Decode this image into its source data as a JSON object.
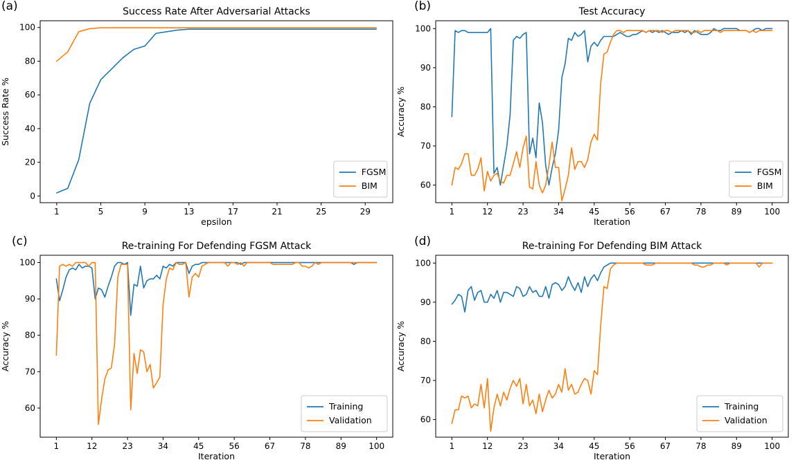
{
  "colors": {
    "series1": "#1f77b4",
    "series2": "#ff7f0e"
  },
  "chart_data": [
    {
      "panel_label": "(a)",
      "type": "line",
      "title": "Success Rate After Adversarial Attacks",
      "xlabel": "epsilon",
      "ylabel": "Success Rate %",
      "xlim": [
        -0.5,
        31.5
      ],
      "ylim": [
        -4,
        104
      ],
      "xticks": [
        1,
        5,
        9,
        13,
        17,
        21,
        25,
        29
      ],
      "yticks": [
        0,
        20,
        40,
        60,
        80,
        100
      ],
      "legend_position": "lower-right",
      "series": [
        {
          "name": "FGSM",
          "x": [
            1,
            2,
            3,
            4,
            5,
            6,
            7,
            8,
            9,
            10,
            11,
            12,
            13,
            14,
            15,
            16,
            17,
            18,
            19,
            20,
            21,
            22,
            23,
            24,
            25,
            26,
            27,
            28,
            29,
            30
          ],
          "values": [
            1.8,
            4.5,
            21.5,
            55,
            69,
            75.5,
            82,
            87,
            89,
            96.5,
            97.5,
            98.5,
            99,
            99,
            99,
            99,
            99,
            99,
            99,
            99,
            99,
            99,
            99,
            99,
            99,
            99,
            99,
            99,
            99,
            99
          ]
        },
        {
          "name": "BIM",
          "x": [
            1,
            2,
            3,
            4,
            5,
            6,
            7,
            8,
            9,
            10,
            11,
            12,
            13,
            14,
            15,
            16,
            17,
            18,
            19,
            20,
            21,
            22,
            23,
            24,
            25,
            26,
            27,
            28,
            29,
            30
          ],
          "values": [
            80,
            85.5,
            97.5,
            99.3,
            99.8,
            99.8,
            99.8,
            99.8,
            99.8,
            99.8,
            99.8,
            99.8,
            99.8,
            99.8,
            99.8,
            99.8,
            99.8,
            99.8,
            99.8,
            99.8,
            99.8,
            99.8,
            99.8,
            99.8,
            99.8,
            99.8,
            99.8,
            99.8,
            99.8,
            99.8
          ]
        }
      ]
    },
    {
      "panel_label": "(b)",
      "type": "line",
      "title": "Test Accuracy",
      "xlabel": "Iteration",
      "ylabel": "Accuracy %",
      "xlim": [
        -4,
        105
      ],
      "ylim": [
        55.5,
        102
      ],
      "xticks": [
        1,
        12,
        23,
        34,
        45,
        56,
        67,
        78,
        89,
        100
      ],
      "yticks": [
        60,
        70,
        80,
        90,
        100
      ],
      "legend_position": "lower-right",
      "series": [
        {
          "name": "FGSM",
          "x_start": 1,
          "values": [
            77.5,
            99.5,
            99,
            99.5,
            99.5,
            99,
            99,
            99,
            99,
            99,
            99,
            99,
            100,
            63,
            64.5,
            60,
            65,
            70,
            78,
            97,
            98,
            97.5,
            98.5,
            99,
            68,
            72,
            67,
            81,
            76,
            65,
            60,
            64.5,
            68,
            74,
            87.5,
            91,
            97.5,
            97,
            99,
            98,
            98.5,
            99.5,
            91.5,
            95.5,
            96.5,
            95.5,
            97,
            98,
            98,
            98,
            98,
            98.5,
            99,
            98.5,
            98,
            98,
            98.5,
            98.5,
            99,
            99.5,
            99,
            99.5,
            99,
            99.5,
            99,
            99.5,
            99,
            98.5,
            99,
            99,
            99,
            99.5,
            99,
            99.5,
            98.5,
            99.5,
            99,
            98.5,
            98.5,
            98.5,
            99,
            100,
            99.5,
            99.5,
            100,
            100,
            100,
            100,
            100,
            99.5,
            99.5,
            99.5,
            99,
            99.5,
            100,
            100,
            99.5,
            100,
            100,
            100
          ]
        },
        {
          "name": "BIM",
          "x_start": 1,
          "values": [
            60,
            64.5,
            64,
            65.5,
            68,
            68,
            62.5,
            62.5,
            64,
            67,
            58.5,
            63.5,
            61,
            62.5,
            63,
            61,
            60.5,
            62.5,
            62.5,
            65.5,
            68.5,
            64.5,
            69.5,
            72.5,
            59.5,
            59,
            66,
            60,
            58,
            60,
            65,
            71,
            64.5,
            64.5,
            56,
            59,
            62.5,
            69.5,
            64,
            66,
            66,
            64.5,
            66.5,
            71,
            73,
            71.5,
            86,
            93.5,
            94,
            96.5,
            98.5,
            99.5,
            99.5,
            99,
            99.5,
            99.5,
            99.5,
            99.5,
            99.5,
            99.5,
            99,
            99.5,
            99.5,
            99.5,
            99.5,
            99,
            99.5,
            99.5,
            99,
            99.5,
            99.5,
            99.5,
            99.5,
            99.5,
            99,
            99,
            99.5,
            99,
            99.5,
            99.5,
            99.5,
            99.5,
            99.5,
            99,
            99.5,
            99.5,
            99.5,
            99.5,
            99.5,
            99.5,
            99.5,
            99.5,
            99,
            99.5,
            99,
            99.5,
            99.5,
            99.5,
            99.5,
            99.5
          ]
        }
      ]
    },
    {
      "panel_label": "(c)",
      "type": "line",
      "title": "Re-training For Defending FGSM Attack",
      "xlabel": "Iteration",
      "ylabel": "Accuracy %",
      "xlim": [
        -4,
        105
      ],
      "ylim": [
        52,
        102
      ],
      "xticks": [
        1,
        12,
        23,
        34,
        45,
        56,
        67,
        78,
        89,
        100
      ],
      "yticks": [
        60,
        70,
        80,
        90,
        100
      ],
      "legend_position": "lower-right",
      "series": [
        {
          "name": "Training",
          "x_start": 1,
          "values": [
            95.5,
            89.5,
            92.5,
            96,
            98,
            98.5,
            98,
            99.5,
            98.5,
            99,
            99,
            98.5,
            90,
            93,
            92.5,
            90.5,
            93.5,
            96,
            99,
            100,
            100,
            99.5,
            100,
            85.5,
            94,
            93.5,
            99,
            93,
            95,
            95.5,
            95.5,
            96.5,
            95.5,
            99,
            98.5,
            99.5,
            99,
            100,
            100,
            100,
            100,
            97,
            99,
            99.5,
            99.5,
            100,
            100,
            100,
            100,
            100,
            100,
            100,
            100,
            100,
            100,
            100,
            100,
            99.5,
            100,
            100,
            100,
            100,
            100,
            100,
            100,
            100,
            100,
            100,
            100,
            100,
            100,
            100,
            100,
            100,
            100,
            100,
            100,
            100,
            100,
            100,
            100,
            100,
            100,
            100,
            100,
            100,
            100,
            100,
            100,
            100,
            100,
            100,
            99.5,
            100,
            100,
            100,
            100,
            100,
            100,
            100
          ]
        },
        {
          "name": "Validation",
          "x_start": 1,
          "values": [
            74.5,
            99,
            99.5,
            99,
            99.5,
            99,
            100,
            100,
            100,
            100,
            99,
            100,
            100,
            55.5,
            62.5,
            68,
            70.5,
            71,
            77.5,
            96,
            99.5,
            99.5,
            99.5,
            59.5,
            75,
            69.5,
            76,
            75.5,
            70,
            72,
            65.5,
            67,
            68.5,
            88.5,
            95.5,
            98.5,
            98,
            100,
            99.5,
            99.5,
            100,
            90.5,
            96,
            97,
            96,
            99,
            99.5,
            100,
            100,
            100,
            100,
            100,
            100,
            99,
            100,
            100,
            99.5,
            100,
            99,
            100,
            100,
            100,
            100,
            100,
            100,
            100,
            100,
            99.5,
            99.5,
            99.5,
            99.5,
            99.5,
            99.5,
            99.5,
            100,
            100,
            99,
            99,
            98.5,
            99,
            100,
            99.5,
            100,
            100,
            100,
            100,
            100,
            100,
            100,
            100,
            100,
            100,
            100,
            100,
            100,
            100,
            100,
            100,
            100,
            100
          ]
        }
      ]
    },
    {
      "panel_label": "(d)",
      "type": "line",
      "title": "Re-training For Defending BIM Attack",
      "xlabel": "Iteration",
      "ylabel": "Accuracy %",
      "xlim": [
        -4,
        105
      ],
      "ylim": [
        55.5,
        102
      ],
      "xticks": [
        1,
        12,
        23,
        34,
        45,
        56,
        67,
        78,
        89,
        100
      ],
      "yticks": [
        60,
        70,
        80,
        90,
        100
      ],
      "legend_position": "lower-right",
      "series": [
        {
          "name": "Training",
          "x_start": 1,
          "values": [
            89.5,
            90.5,
            92,
            91.5,
            87.5,
            93,
            94,
            90.5,
            92.5,
            93,
            90,
            90,
            92,
            91,
            93,
            90,
            92.5,
            92.5,
            92,
            91.5,
            94,
            93.5,
            91.5,
            92,
            94,
            92.5,
            93,
            91.5,
            91.5,
            94,
            91,
            94.5,
            95,
            94.5,
            93,
            94,
            96.5,
            94.5,
            93,
            95,
            92.5,
            96.5,
            94,
            96,
            97,
            95.5,
            97.5,
            99,
            99.5,
            100,
            100,
            100,
            100,
            100,
            100,
            100,
            100,
            100,
            100,
            100,
            100,
            100,
            100,
            100,
            100,
            100,
            100,
            100,
            100,
            100,
            100,
            100,
            100,
            100,
            100,
            100,
            100,
            100,
            100,
            100,
            100,
            100,
            100,
            100,
            100,
            100,
            100,
            100,
            100,
            100,
            100,
            100,
            100,
            100,
            100,
            100,
            100,
            100,
            100,
            100
          ]
        },
        {
          "name": "Validation",
          "x_start": 1,
          "values": [
            59,
            62.5,
            62.5,
            66,
            65.5,
            66,
            63,
            64,
            63.5,
            69,
            63,
            70.5,
            57,
            63,
            66.5,
            63.5,
            67,
            65,
            68,
            70,
            68.5,
            70.5,
            64,
            69,
            63.5,
            65,
            61.5,
            66.5,
            62,
            65,
            67.5,
            65.5,
            66.5,
            69,
            67,
            73,
            67.5,
            69,
            66.5,
            67,
            69,
            70.5,
            70,
            66.5,
            72.5,
            71.5,
            84,
            94,
            93.5,
            98.5,
            99.5,
            100,
            100,
            100,
            100,
            100,
            100,
            100,
            100,
            100,
            99.5,
            99.5,
            99.5,
            100,
            100,
            100,
            100,
            100,
            100,
            100,
            100,
            100,
            100,
            100,
            100,
            99.5,
            99.5,
            99,
            99,
            99.5,
            99.5,
            100,
            100,
            100,
            100,
            99.5,
            100,
            100,
            100,
            100,
            100,
            100,
            100,
            100,
            100,
            99,
            100,
            100,
            100,
            100
          ]
        }
      ]
    }
  ]
}
